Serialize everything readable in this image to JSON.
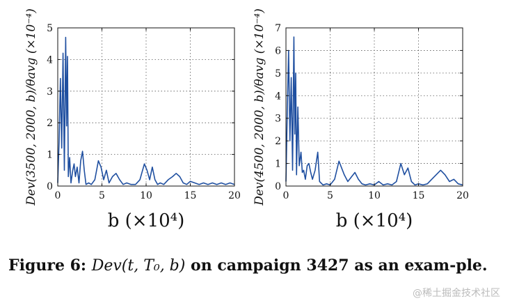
{
  "chart_data": [
    {
      "type": "line",
      "ylabel": "Dev(3500, 2000, b)/θavg (×10⁻⁴)",
      "xlabel": "b (×10⁴)",
      "xlim": [
        0,
        20
      ],
      "ylim": [
        0,
        5
      ],
      "xticks": [
        "0",
        "5",
        "10",
        "15",
        "20"
      ],
      "yticks": [
        "0",
        "1",
        "2",
        "3",
        "4",
        "5"
      ],
      "grid": true,
      "color": "#1f4fa0",
      "series": [
        {
          "x": [
            0,
            0.15,
            0.3,
            0.45,
            0.6,
            0.75,
            0.9,
            1.0,
            1.1,
            1.2,
            1.35,
            1.5,
            1.7,
            1.85,
            2.0,
            2.2,
            2.4,
            2.6,
            2.8,
            3.0,
            3.2,
            3.5,
            3.8,
            4.2,
            4.6,
            4.9,
            5.2,
            5.5,
            5.8,
            6.2,
            6.6,
            7.0,
            7.4,
            7.8,
            8.3,
            8.8,
            9.3,
            9.8,
            10.1,
            10.4,
            10.7,
            11.0,
            11.3,
            11.6,
            12.0,
            12.5,
            13.0,
            13.4,
            13.8,
            14.2,
            14.6,
            15.0,
            15.5,
            16.0,
            16.5,
            17.0,
            17.5,
            18.0,
            18.5,
            19.0,
            19.5,
            20.0
          ],
          "y": [
            0.1,
            1.4,
            3.4,
            1.2,
            4.2,
            0.5,
            4.7,
            1.9,
            4.1,
            0.3,
            0.9,
            0.1,
            0.5,
            0.7,
            0.3,
            0.6,
            0.1,
            0.8,
            1.1,
            0.5,
            0.05,
            0.1,
            0.05,
            0.2,
            0.8,
            0.6,
            0.2,
            0.5,
            0.1,
            0.3,
            0.4,
            0.2,
            0.05,
            0.1,
            0.05,
            0.05,
            0.2,
            0.7,
            0.5,
            0.2,
            0.6,
            0.2,
            0.05,
            0.1,
            0.05,
            0.2,
            0.3,
            0.4,
            0.3,
            0.1,
            0.05,
            0.15,
            0.1,
            0.05,
            0.1,
            0.05,
            0.1,
            0.05,
            0.1,
            0.05,
            0.1,
            0.05
          ]
        }
      ]
    },
    {
      "type": "line",
      "ylabel": "Dev(4500, 2000, b)/θavg (×10⁻⁴)",
      "xlabel": "b (×10⁴)",
      "xlim": [
        0,
        20
      ],
      "ylim": [
        0,
        7
      ],
      "xticks": [
        "0",
        "5",
        "10",
        "15",
        "20"
      ],
      "yticks": [
        "0",
        "1",
        "2",
        "3",
        "4",
        "5",
        "6",
        "7"
      ],
      "grid": true,
      "color": "#1f4fa0",
      "series": [
        {
          "x": [
            0,
            0.15,
            0.3,
            0.45,
            0.6,
            0.75,
            0.9,
            1.0,
            1.1,
            1.2,
            1.35,
            1.5,
            1.7,
            1.85,
            2.0,
            2.2,
            2.4,
            2.6,
            2.8,
            3.0,
            3.3,
            3.6,
            3.8,
            4.2,
            4.6,
            5.0,
            5.5,
            6.0,
            6.3,
            6.6,
            7.0,
            7.4,
            7.8,
            8.2,
            8.6,
            9.0,
            9.5,
            10.0,
            10.5,
            11.0,
            11.5,
            12.0,
            12.5,
            13.0,
            13.4,
            13.8,
            14.2,
            14.6,
            15.0,
            15.5,
            16.0,
            16.5,
            17.0,
            17.5,
            18.0,
            18.5,
            19.0,
            19.5,
            20.0
          ],
          "y": [
            0.2,
            3.3,
            6.0,
            2.0,
            4.8,
            0.7,
            6.6,
            2.3,
            5.0,
            0.5,
            3.5,
            0.9,
            1.5,
            0.6,
            0.7,
            0.3,
            0.9,
            1.0,
            0.6,
            0.3,
            0.7,
            1.5,
            0.2,
            0.05,
            0.1,
            0.05,
            0.3,
            1.1,
            0.8,
            0.5,
            0.2,
            0.4,
            0.6,
            0.3,
            0.1,
            0.05,
            0.1,
            0.05,
            0.2,
            0.05,
            0.1,
            0.05,
            0.2,
            1.0,
            0.5,
            0.8,
            0.2,
            0.05,
            0.1,
            0.05,
            0.1,
            0.3,
            0.5,
            0.7,
            0.5,
            0.2,
            0.3,
            0.1,
            0.05
          ]
        }
      ]
    }
  ],
  "caption": {
    "label": "Figure 6:",
    "math": "Dev(t, T₀, b)",
    "text": "on campaign 3427 as an exam-ple."
  },
  "watermark": "@稀土掘金技术社区"
}
